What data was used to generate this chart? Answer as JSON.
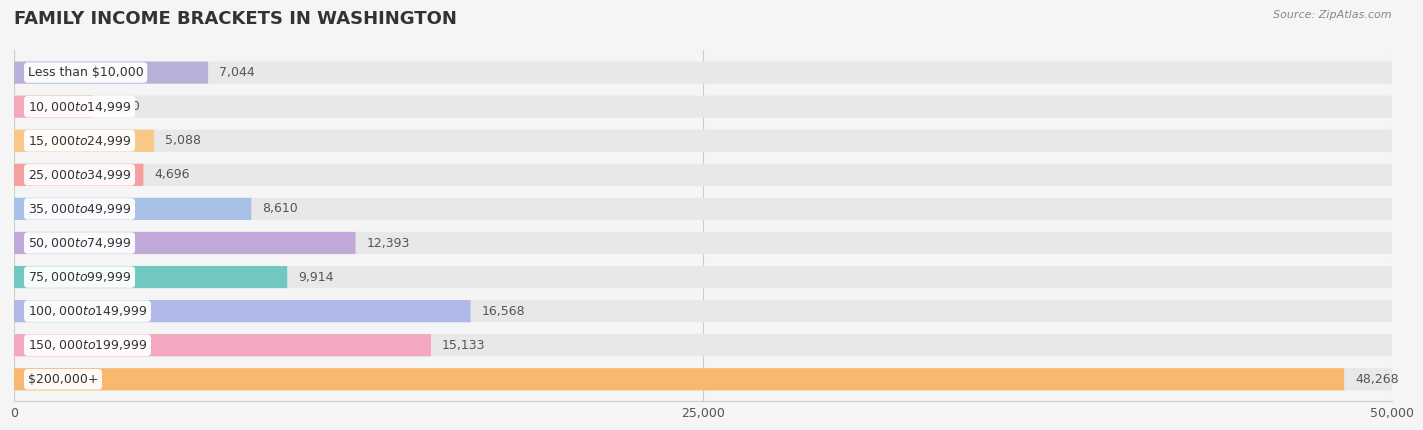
{
  "title": "FAMILY INCOME BRACKETS IN WASHINGTON",
  "source": "Source: ZipAtlas.com",
  "categories": [
    "Less than $10,000",
    "$10,000 to $14,999",
    "$15,000 to $24,999",
    "$25,000 to $34,999",
    "$35,000 to $49,999",
    "$50,000 to $74,999",
    "$75,000 to $99,999",
    "$100,000 to $149,999",
    "$150,000 to $199,999",
    "$200,000+"
  ],
  "values": [
    7044,
    2870,
    5088,
    4696,
    8610,
    12393,
    9914,
    16568,
    15133,
    48268
  ],
  "bar_colors": [
    "#b8b0d8",
    "#f4a8b8",
    "#f8c888",
    "#f4a0a0",
    "#a8c0e8",
    "#c0a8d8",
    "#70c8c0",
    "#b0b8e8",
    "#f4a8c0",
    "#f8b870"
  ],
  "bg_color": "#f5f5f5",
  "bar_bg_color": "#e8e8e8",
  "xlim": [
    0,
    50000
  ],
  "xticks": [
    0,
    25000,
    50000
  ],
  "xtick_labels": [
    "0",
    "25,000",
    "50,000"
  ],
  "value_color": "#555555",
  "title_color": "#333333",
  "label_bg": "#ffffff",
  "bar_height": 0.65
}
